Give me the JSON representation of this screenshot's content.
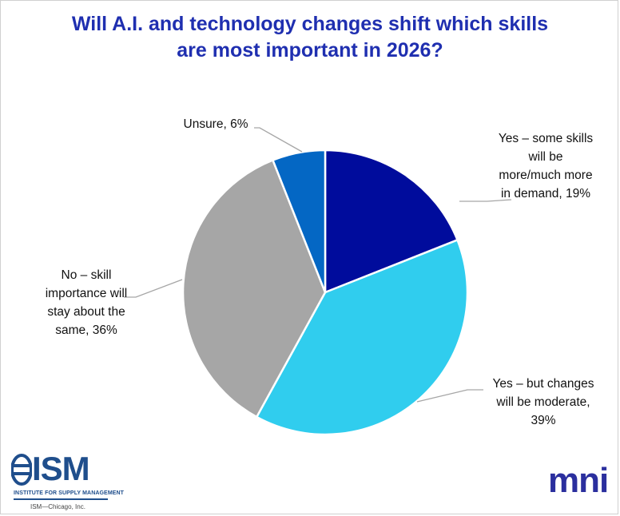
{
  "chart_data": {
    "type": "pie",
    "title": [
      "Will A.I. and technology changes shift which skills",
      "are most important in 2026?"
    ],
    "slices": [
      {
        "label": "Yes – some skills will be more/much more in demand, 19%",
        "value": 19,
        "color": "#000c9c",
        "label_lines": [
          "Yes – some skills",
          "will be",
          "more/much more",
          "in demand, 19%"
        ]
      },
      {
        "label": "Yes – but changes will be moderate, 39%",
        "value": 39,
        "color": "#30cdee",
        "label_lines": [
          "Yes – but changes",
          "will be moderate,",
          "39%"
        ]
      },
      {
        "label": "No – skill importance will stay about the same, 36%",
        "value": 36,
        "color": "#a6a6a6",
        "label_lines": [
          "No – skill",
          "importance will",
          "stay about the",
          "same, 36%"
        ]
      },
      {
        "label": "Unsure, 6%",
        "value": 6,
        "color": "#0467c4",
        "label_lines": [
          "Unsure, 6%"
        ]
      }
    ],
    "start_angle_deg": 0,
    "direction": "clockwise"
  },
  "logos": {
    "ism_word": "ISM",
    "ism_subtitle": "INSTITUTE FOR SUPPLY MANAGEMENT",
    "ism_chapter": "ISM—Chicago, Inc.",
    "mni": "mni"
  }
}
